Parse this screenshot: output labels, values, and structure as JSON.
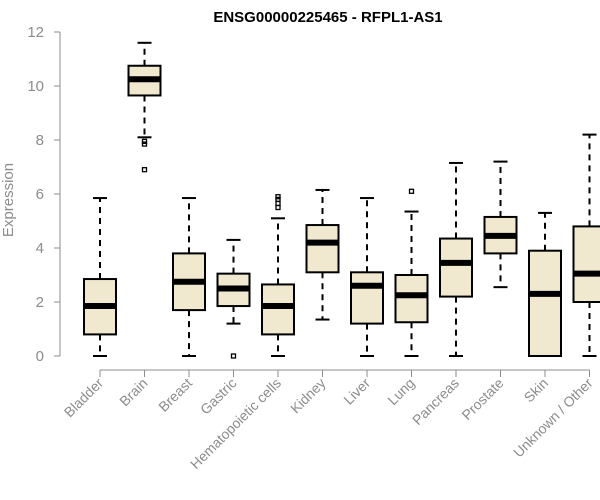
{
  "chart_data": {
    "type": "box",
    "title": "ENSG00000225465 - RFPL1-AS1",
    "xlabel": "",
    "ylabel": "Expression",
    "ylim": [
      0,
      12
    ],
    "yticks": [
      0,
      2,
      4,
      6,
      8,
      10,
      12
    ],
    "categories": [
      "Bladder",
      "Brain",
      "Breast",
      "Gastric",
      "Hematopoietic cells",
      "Kidney",
      "Liver",
      "Lung",
      "Pancreas",
      "Prostate",
      "Skin",
      "Unknown / Other"
    ],
    "boxes": [
      {
        "min": 0.0,
        "q1": 0.8,
        "median": 1.85,
        "q3": 2.85,
        "max": 5.85,
        "outliers": []
      },
      {
        "min": 8.1,
        "q1": 9.65,
        "median": 10.25,
        "q3": 10.75,
        "max": 11.6,
        "outliers": [
          7.85,
          7.95,
          6.9
        ]
      },
      {
        "min": 0.0,
        "q1": 1.7,
        "median": 2.75,
        "q3": 3.8,
        "max": 5.85,
        "outliers": []
      },
      {
        "min": 1.2,
        "q1": 1.85,
        "median": 2.5,
        "q3": 3.05,
        "max": 4.3,
        "outliers": [
          0.0
        ]
      },
      {
        "min": 0.0,
        "q1": 0.8,
        "median": 1.85,
        "q3": 2.65,
        "max": 5.1,
        "outliers": [
          5.5,
          5.65,
          5.8,
          5.9
        ]
      },
      {
        "min": 1.35,
        "q1": 3.1,
        "median": 4.2,
        "q3": 4.85,
        "max": 6.15,
        "outliers": []
      },
      {
        "min": 0.0,
        "q1": 1.2,
        "median": 2.6,
        "q3": 3.1,
        "max": 5.85,
        "outliers": []
      },
      {
        "min": 0.0,
        "q1": 1.25,
        "median": 2.25,
        "q3": 3.0,
        "max": 5.35,
        "outliers": [
          6.1
        ]
      },
      {
        "min": 0.0,
        "q1": 2.2,
        "median": 3.45,
        "q3": 4.35,
        "max": 7.15,
        "outliers": []
      },
      {
        "min": 2.55,
        "q1": 3.8,
        "median": 4.45,
        "q3": 5.15,
        "max": 7.2,
        "outliers": []
      },
      {
        "min": 0.0,
        "q1": 0.0,
        "median": 2.3,
        "q3": 3.9,
        "max": 5.3,
        "outliers": []
      },
      {
        "min": 0.0,
        "q1": 2.0,
        "median": 3.05,
        "q3": 4.8,
        "max": 8.2,
        "outliers": []
      }
    ]
  }
}
